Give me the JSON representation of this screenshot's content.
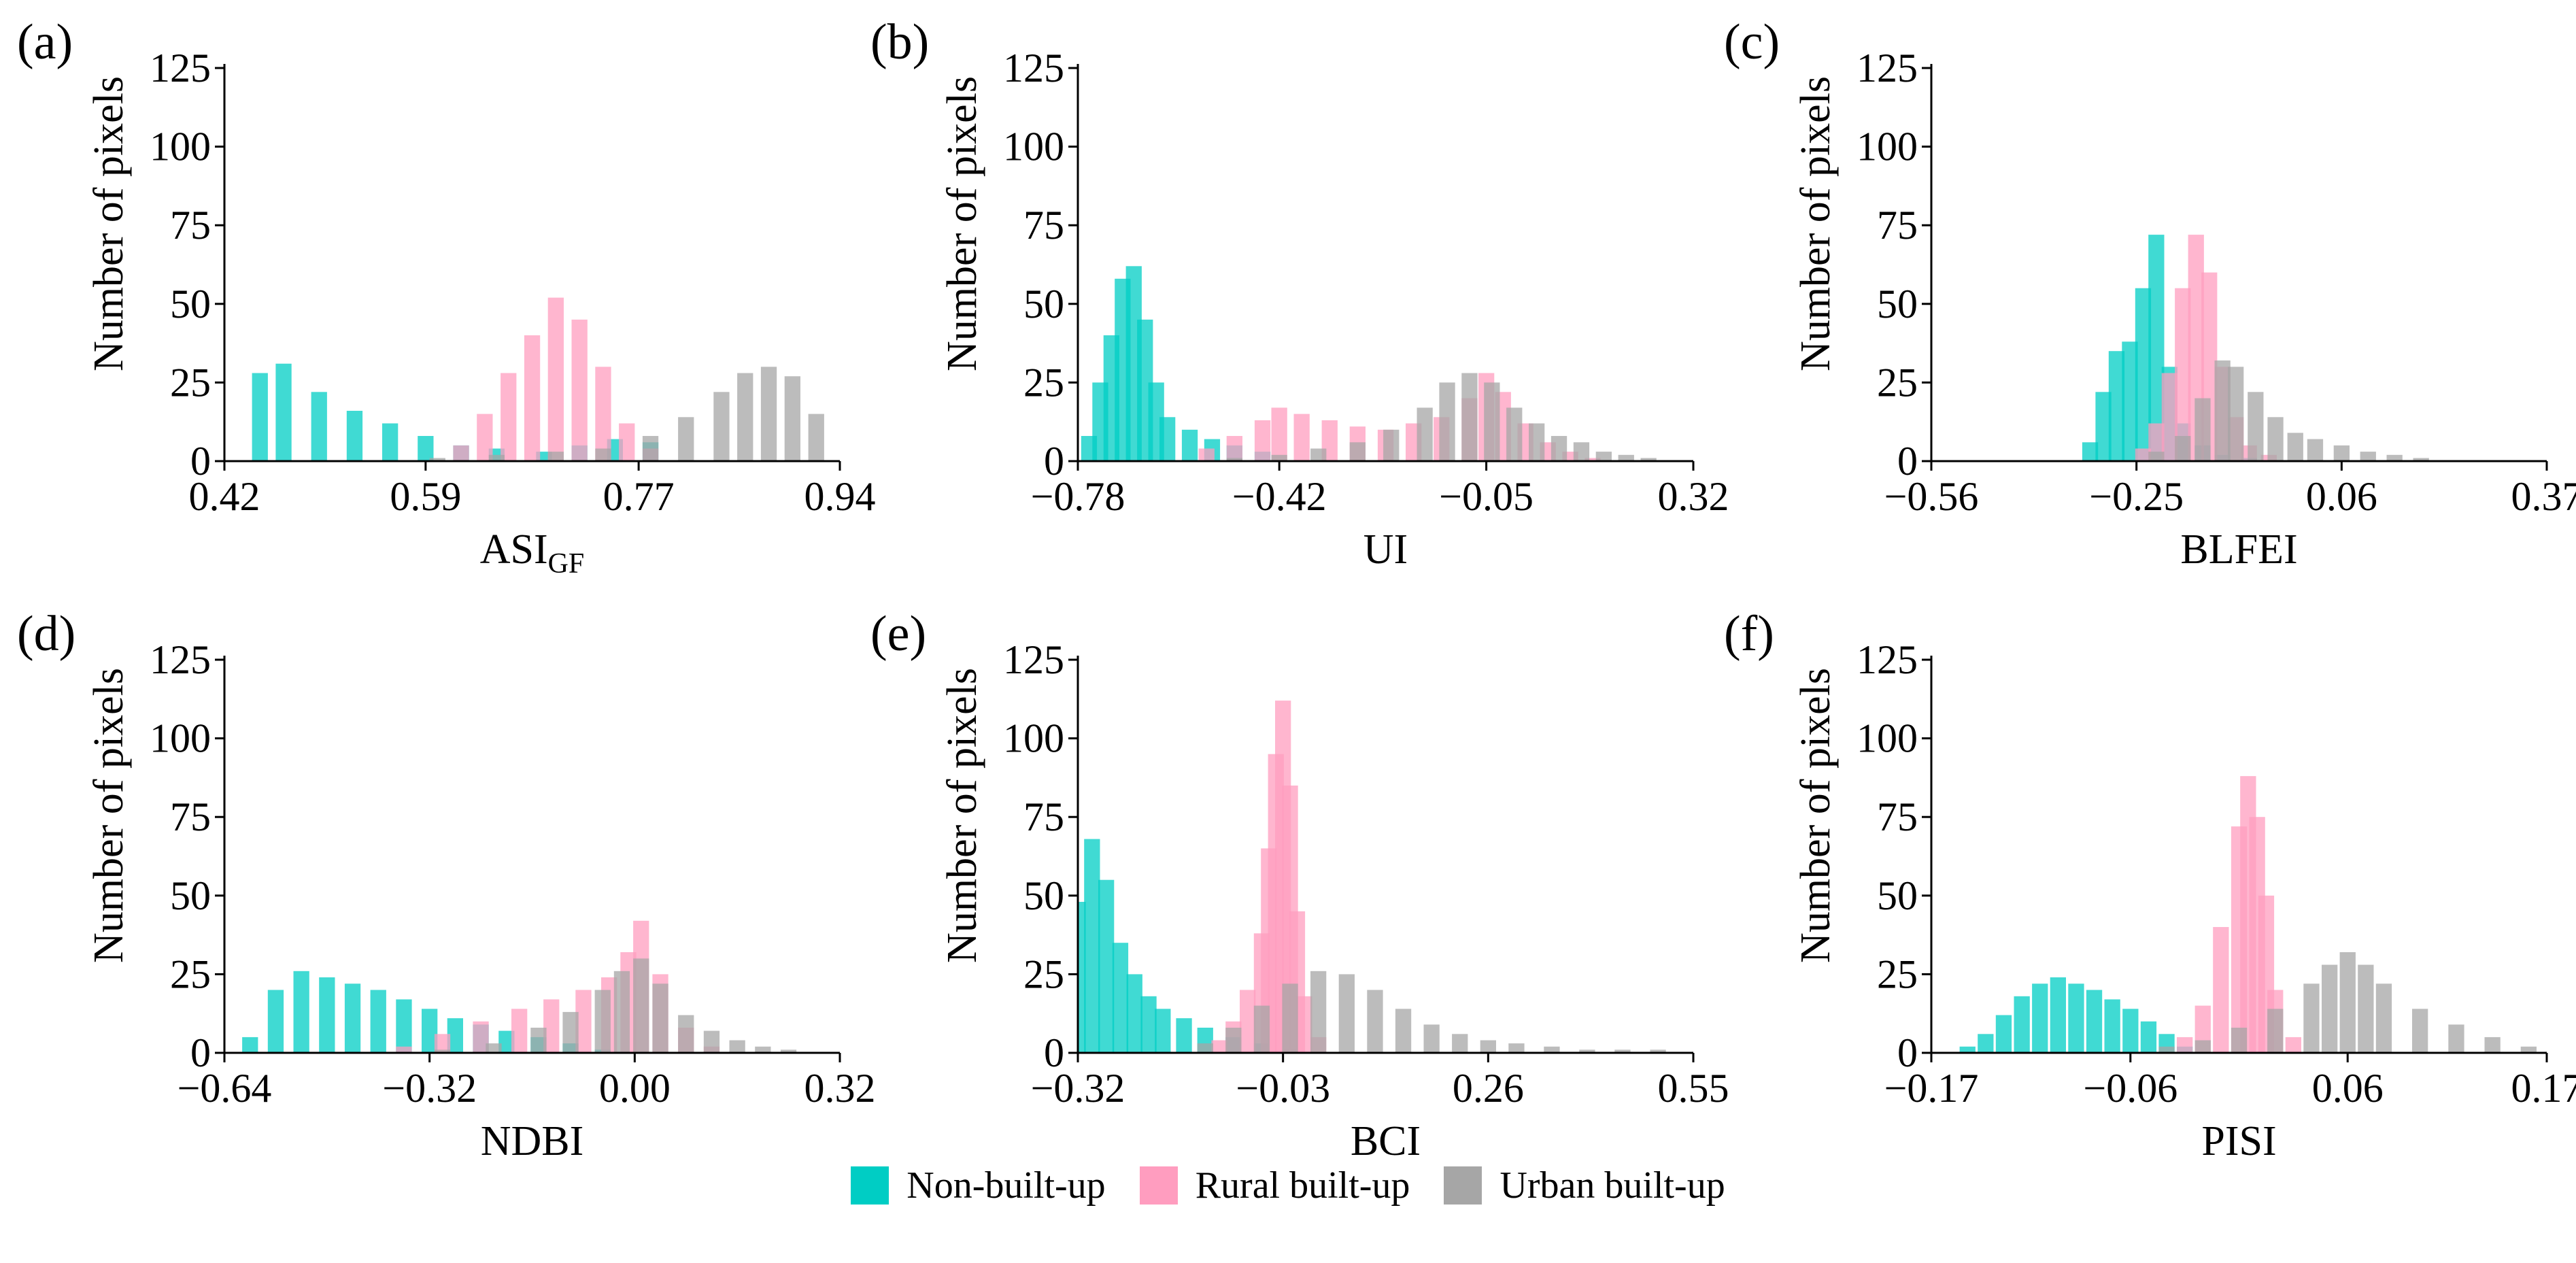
{
  "figure": {
    "legend": [
      {
        "name": "Non-built-up",
        "color": "#00CDC4"
      },
      {
        "name": "Rural built-up",
        "color": "#FF9DBF"
      },
      {
        "name": "Urban built-up",
        "color": "#A6A6A6"
      }
    ]
  },
  "chart_data": [
    {
      "type": "bar",
      "subtype": "histogram",
      "panel": "(a)",
      "xlabel": "ASI",
      "xlabel_subscript": "GF",
      "ylabel": "Number of pixels",
      "xlim": [
        0.42,
        0.94
      ],
      "ylim": [
        0,
        125
      ],
      "xticks": [
        0.42,
        0.59,
        0.77,
        0.94
      ],
      "xtick_labels": [
        "0.42",
        "0.59",
        "0.77",
        "0.94"
      ],
      "yticks": [
        0,
        25,
        50,
        75,
        100,
        125
      ],
      "series": [
        {
          "name": "Non-built-up",
          "x": [
            0.45,
            0.47,
            0.5,
            0.53,
            0.56,
            0.59,
            0.62,
            0.65,
            0.69,
            0.72,
            0.75,
            0.78
          ],
          "values": [
            28,
            31,
            22,
            16,
            12,
            8,
            5,
            4,
            3,
            5,
            7,
            6
          ]
        },
        {
          "name": "Rural built-up",
          "x": [
            0.62,
            0.64,
            0.66,
            0.68,
            0.7,
            0.72,
            0.74,
            0.76,
            0.78
          ],
          "values": [
            5,
            15,
            28,
            40,
            52,
            45,
            30,
            12,
            4
          ]
        },
        {
          "name": "Urban built-up",
          "x": [
            0.6,
            0.65,
            0.7,
            0.74,
            0.78,
            0.81,
            0.84,
            0.86,
            0.88,
            0.9,
            0.92
          ],
          "values": [
            1,
            2,
            3,
            4,
            8,
            14,
            22,
            28,
            30,
            27,
            15
          ]
        }
      ]
    },
    {
      "type": "bar",
      "subtype": "histogram",
      "panel": "(b)",
      "xlabel": "UI",
      "ylabel": "Number of pixels",
      "xlim": [
        -0.78,
        0.32
      ],
      "ylim": [
        0,
        125
      ],
      "xticks": [
        -0.78,
        -0.42,
        -0.05,
        0.32
      ],
      "xtick_labels": [
        "−0.78",
        "−0.42",
        "−0.05",
        "0.32"
      ],
      "yticks": [
        0,
        25,
        50,
        75,
        100,
        125
      ],
      "series": [
        {
          "name": "Non-built-up",
          "x": [
            -0.76,
            -0.74,
            -0.72,
            -0.7,
            -0.68,
            -0.66,
            -0.64,
            -0.62,
            -0.58,
            -0.54,
            -0.5,
            -0.45
          ],
          "values": [
            8,
            25,
            40,
            58,
            62,
            45,
            25,
            14,
            10,
            7,
            5,
            3
          ]
        },
        {
          "name": "Rural built-up",
          "x": [
            -0.55,
            -0.5,
            -0.45,
            -0.42,
            -0.38,
            -0.33,
            -0.28,
            -0.23,
            -0.18,
            -0.13,
            -0.08,
            -0.05,
            -0.02,
            0.02,
            0.06,
            0.1,
            0.14
          ],
          "values": [
            4,
            8,
            13,
            17,
            15,
            13,
            11,
            10,
            12,
            14,
            20,
            28,
            22,
            12,
            6,
            3,
            1
          ]
        },
        {
          "name": "Urban built-up",
          "x": [
            -0.5,
            -0.42,
            -0.35,
            -0.28,
            -0.22,
            -0.16,
            -0.12,
            -0.08,
            -0.04,
            0.0,
            0.04,
            0.08,
            0.12,
            0.16,
            0.2,
            0.24
          ],
          "values": [
            1,
            2,
            4,
            6,
            10,
            17,
            25,
            28,
            25,
            17,
            12,
            8,
            6,
            3,
            2,
            1
          ]
        }
      ]
    },
    {
      "type": "bar",
      "subtype": "histogram",
      "panel": "(c)",
      "xlabel": "BLFEI",
      "ylabel": "Number of pixels",
      "xlim": [
        -0.56,
        0.37
      ],
      "ylim": [
        0,
        125
      ],
      "xticks": [
        -0.56,
        -0.25,
        0.06,
        0.37
      ],
      "xtick_labels": [
        "−0.56",
        "−0.25",
        "0.06",
        "0.37"
      ],
      "yticks": [
        0,
        25,
        50,
        75,
        100,
        125
      ],
      "series": [
        {
          "name": "Non-built-up",
          "x": [
            -0.32,
            -0.3,
            -0.28,
            -0.26,
            -0.24,
            -0.22,
            -0.2,
            -0.18,
            -0.15,
            -0.12,
            -0.08
          ],
          "values": [
            6,
            22,
            35,
            38,
            55,
            72,
            30,
            12,
            5,
            2,
            1
          ]
        },
        {
          "name": "Rural built-up",
          "x": [
            -0.24,
            -0.22,
            -0.2,
            -0.18,
            -0.16,
            -0.14,
            -0.12,
            -0.1,
            -0.08,
            -0.05
          ],
          "values": [
            4,
            12,
            28,
            55,
            72,
            60,
            30,
            14,
            5,
            2
          ]
        },
        {
          "name": "Urban built-up",
          "x": [
            -0.22,
            -0.18,
            -0.15,
            -0.12,
            -0.1,
            -0.07,
            -0.04,
            -0.01,
            0.02,
            0.06,
            0.1,
            0.14,
            0.18
          ],
          "values": [
            3,
            8,
            20,
            32,
            30,
            22,
            14,
            9,
            7,
            5,
            3,
            2,
            1
          ]
        }
      ]
    },
    {
      "type": "bar",
      "subtype": "histogram",
      "panel": "(d)",
      "xlabel": "NDBI",
      "ylabel": "Number of pixels",
      "xlim": [
        -0.64,
        0.32
      ],
      "ylim": [
        0,
        125
      ],
      "xticks": [
        -0.64,
        -0.32,
        0.0,
        0.32
      ],
      "xtick_labels": [
        "−0.64",
        "−0.32",
        "0.00",
        "0.32"
      ],
      "yticks": [
        0,
        25,
        50,
        75,
        100,
        125
      ],
      "series": [
        {
          "name": "Non-built-up",
          "x": [
            -0.6,
            -0.56,
            -0.52,
            -0.48,
            -0.44,
            -0.4,
            -0.36,
            -0.32,
            -0.28,
            -0.24,
            -0.2,
            -0.15,
            -0.1,
            -0.05
          ],
          "values": [
            5,
            20,
            26,
            24,
            22,
            20,
            17,
            14,
            11,
            9,
            7,
            5,
            3,
            1
          ]
        },
        {
          "name": "Rural built-up",
          "x": [
            -0.36,
            -0.3,
            -0.24,
            -0.18,
            -0.13,
            -0.08,
            -0.04,
            -0.01,
            0.01,
            0.04,
            0.08,
            0.12
          ],
          "values": [
            2,
            6,
            10,
            14,
            17,
            20,
            24,
            32,
            42,
            25,
            8,
            2
          ]
        },
        {
          "name": "Urban built-up",
          "x": [
            -0.3,
            -0.22,
            -0.15,
            -0.1,
            -0.05,
            -0.02,
            0.01,
            0.04,
            0.08,
            0.12,
            0.16,
            0.2,
            0.24
          ],
          "values": [
            1,
            3,
            8,
            13,
            20,
            26,
            30,
            22,
            12,
            7,
            4,
            2,
            1
          ]
        }
      ]
    },
    {
      "type": "bar",
      "subtype": "histogram",
      "panel": "(e)",
      "xlabel": "BCI",
      "ylabel": "Number of pixels",
      "xlim": [
        -0.32,
        0.55
      ],
      "ylim": [
        0,
        125
      ],
      "xticks": [
        -0.32,
        -0.03,
        0.26,
        0.55
      ],
      "xtick_labels": [
        "−0.32",
        "−0.03",
        "0.26",
        "0.55"
      ],
      "yticks": [
        0,
        25,
        50,
        75,
        100,
        125
      ],
      "series": [
        {
          "name": "Non-built-up",
          "x": [
            -0.33,
            -0.32,
            -0.3,
            -0.28,
            -0.26,
            -0.24,
            -0.22,
            -0.2,
            -0.17,
            -0.14,
            -0.1,
            -0.06,
            -0.02
          ],
          "values": [
            10,
            48,
            68,
            55,
            35,
            25,
            18,
            14,
            11,
            8,
            5,
            3,
            1
          ]
        },
        {
          "name": "Rural built-up",
          "x": [
            -0.12,
            -0.1,
            -0.08,
            -0.06,
            -0.05,
            -0.04,
            -0.03,
            -0.02,
            -0.01,
            0.0,
            0.02
          ],
          "values": [
            4,
            10,
            20,
            38,
            65,
            95,
            112,
            85,
            45,
            18,
            5
          ]
        },
        {
          "name": "Urban built-up",
          "x": [
            -0.14,
            -0.1,
            -0.06,
            -0.02,
            0.02,
            0.06,
            0.1,
            0.14,
            0.18,
            0.22,
            0.26,
            0.3,
            0.35,
            0.4,
            0.45,
            0.5
          ],
          "values": [
            3,
            8,
            15,
            22,
            26,
            25,
            20,
            14,
            9,
            6,
            4,
            3,
            2,
            1,
            1,
            1
          ]
        }
      ]
    },
    {
      "type": "bar",
      "subtype": "histogram",
      "panel": "(f)",
      "xlabel": "PISI",
      "ylabel": "Number of pixels",
      "xlim": [
        -0.17,
        0.17
      ],
      "ylim": [
        0,
        125
      ],
      "xticks": [
        -0.17,
        -0.06,
        0.06,
        0.17
      ],
      "xtick_labels": [
        "−0.17",
        "−0.06",
        "0.06",
        "0.17"
      ],
      "yticks": [
        0,
        25,
        50,
        75,
        100,
        125
      ],
      "series": [
        {
          "name": "Non-built-up",
          "x": [
            -0.15,
            -0.14,
            -0.13,
            -0.12,
            -0.11,
            -0.1,
            -0.09,
            -0.08,
            -0.07,
            -0.06,
            -0.05,
            -0.04,
            -0.03
          ],
          "values": [
            2,
            6,
            12,
            18,
            22,
            24,
            22,
            20,
            17,
            14,
            10,
            6,
            2
          ]
        },
        {
          "name": "Rural built-up",
          "x": [
            -0.03,
            -0.02,
            -0.01,
            0.0,
            0.005,
            0.01,
            0.015,
            0.02,
            0.03
          ],
          "values": [
            5,
            15,
            40,
            72,
            88,
            75,
            50,
            20,
            5
          ]
        },
        {
          "name": "Urban built-up",
          "x": [
            -0.04,
            -0.02,
            0.0,
            0.02,
            0.04,
            0.05,
            0.06,
            0.07,
            0.08,
            0.1,
            0.12,
            0.14,
            0.16
          ],
          "values": [
            2,
            4,
            8,
            14,
            22,
            28,
            32,
            28,
            22,
            14,
            9,
            5,
            2
          ]
        }
      ]
    }
  ]
}
